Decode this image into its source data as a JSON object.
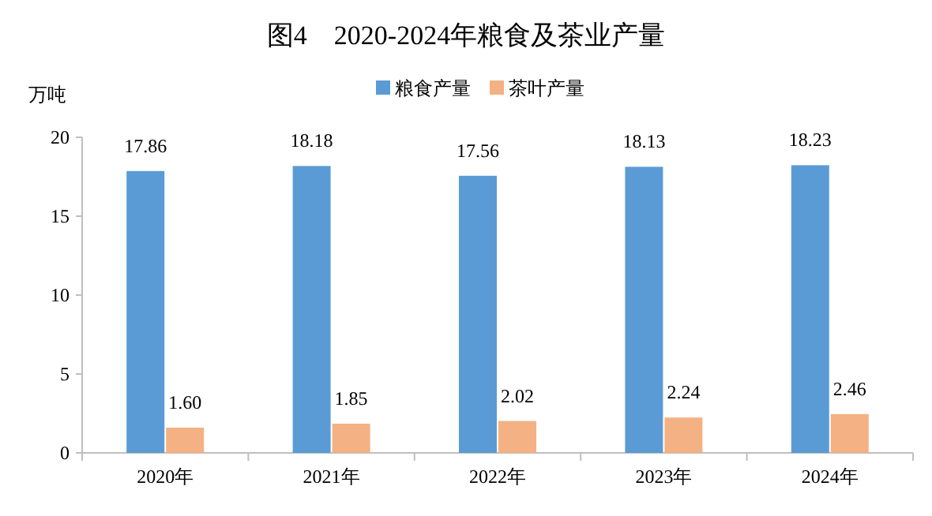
{
  "chart_data": {
    "type": "bar",
    "title": "图4　2020-2024年粮食及茶业产量",
    "ylabel": "万吨",
    "categories": [
      "2020年",
      "2021年",
      "2022年",
      "2023年",
      "2024年"
    ],
    "series": [
      {
        "name": "粮食产量",
        "color": "#5b9bd5",
        "values": [
          17.86,
          18.18,
          17.56,
          18.13,
          18.23
        ],
        "value_labels": [
          "17.86",
          "18.18",
          "17.56",
          "18.13",
          "18.23"
        ]
      },
      {
        "name": "茶叶产量",
        "color": "#f4b183",
        "values": [
          1.6,
          1.85,
          2.02,
          2.24,
          2.46
        ],
        "value_labels": [
          "1.60",
          "1.85",
          "2.02",
          "2.24",
          "2.46"
        ]
      }
    ],
    "ylim": [
      0,
      20
    ],
    "yticks": [
      0,
      5,
      10,
      15,
      20
    ],
    "legend": "top",
    "grid": false
  }
}
